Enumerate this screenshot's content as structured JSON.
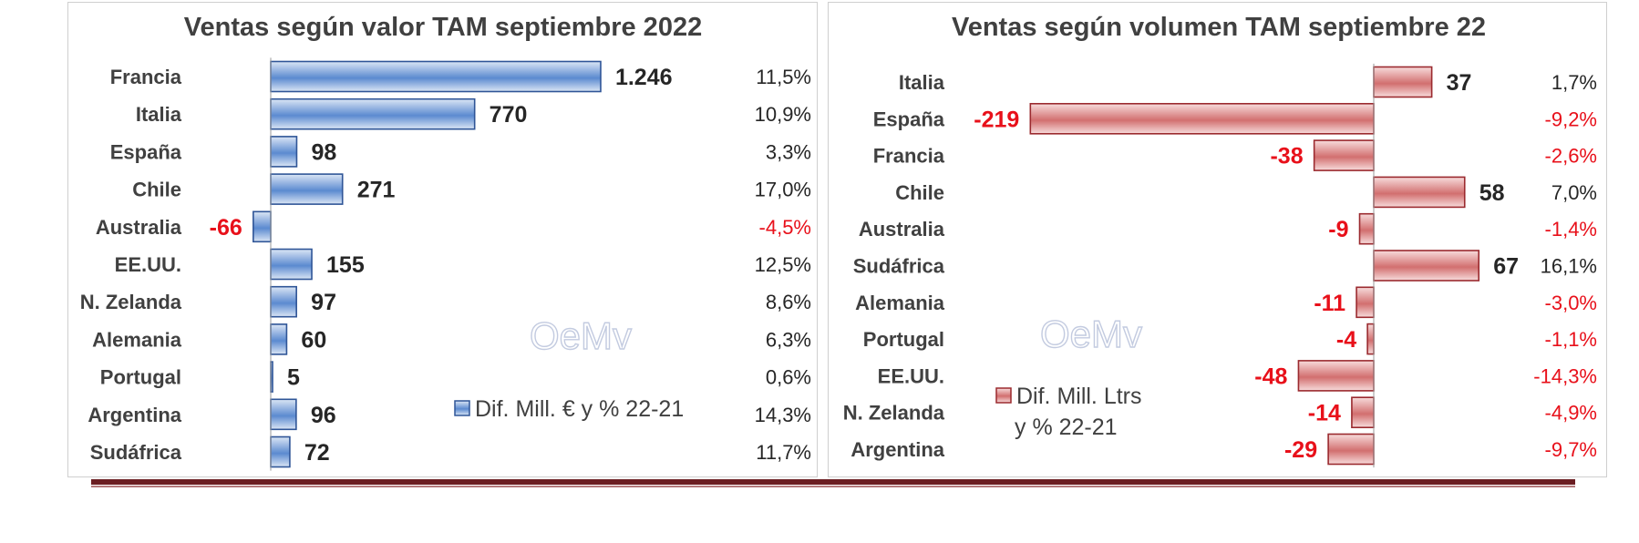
{
  "chart_data": [
    {
      "type": "bar",
      "orientation": "horizontal",
      "title": "Ventas según valor TAM septiembre 2022",
      "categories": [
        "Francia",
        "Italia",
        "España",
        "Chile",
        "Australia",
        "EE.UU.",
        "N. Zelanda",
        "Alemania",
        "Portugal",
        "Argentina",
        "Sudáfrica"
      ],
      "values": [
        1246,
        770,
        98,
        271,
        -66,
        155,
        97,
        60,
        5,
        96,
        72
      ],
      "value_labels": [
        "1.246",
        "770",
        "98",
        "271",
        "-66",
        "155",
        "97",
        "60",
        "5",
        "96",
        "72"
      ],
      "pct_labels": [
        "11,5%",
        "10,9%",
        "3,3%",
        "17,0%",
        "-4,5%",
        "12,5%",
        "8,6%",
        "6,3%",
        "0,6%",
        "14,3%",
        "11,7%"
      ],
      "legend": "Dif. Mill. € y % 22-21",
      "legend_placement": "bottom-right",
      "color": "#4f81bd",
      "negative_color": "#e8101a",
      "grid": false
    },
    {
      "type": "bar",
      "orientation": "horizontal",
      "title": "Ventas según volumen TAM septiembre 22",
      "categories": [
        "Italia",
        "España",
        "Francia",
        "Chile",
        "Australia",
        "Sudáfrica",
        "Alemania",
        "Portugal",
        "EE.UU.",
        "N. Zelanda",
        "Argentina"
      ],
      "values": [
        37,
        -219,
        -38,
        58,
        -9,
        67,
        -11,
        -4,
        -48,
        -14,
        -29
      ],
      "value_labels": [
        "37",
        "-219",
        "-38",
        "58",
        "-9",
        "67",
        "-11",
        "-4",
        "-48",
        "-14",
        "-29"
      ],
      "pct_labels": [
        "1,7%",
        "-9,2%",
        "-2,6%",
        "7,0%",
        "-1,4%",
        "16,1%",
        "-3,0%",
        "-1,1%",
        "-14,3%",
        "-4,9%",
        "-9,7%"
      ],
      "legend": [
        "Dif. Mill. Ltrs",
        "y % 22-21"
      ],
      "legend_placement": "bottom-left",
      "color": "#c0504d",
      "negative_color": "#e8101a",
      "grid": false
    }
  ],
  "watermark": "OeMv"
}
